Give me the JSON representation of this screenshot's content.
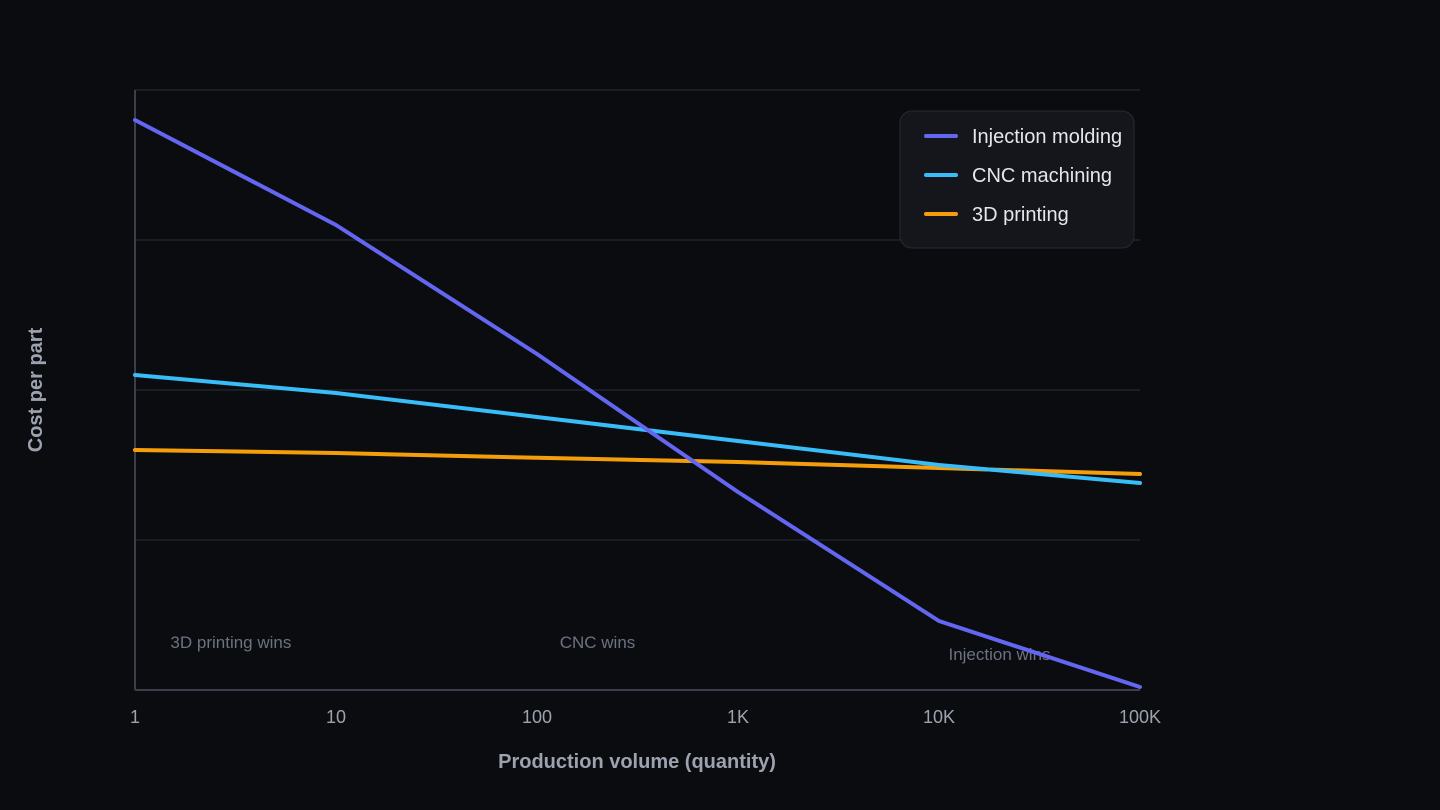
{
  "chart_data": {
    "type": "line",
    "title": "",
    "xlabel": "Production volume (quantity)",
    "ylabel": "Cost per part",
    "x_scale": "log",
    "x": [
      1,
      10,
      100,
      1000,
      10000,
      100000
    ],
    "x_tick_labels": [
      "1",
      "10",
      "100",
      "1K",
      "10K",
      "100K"
    ],
    "ylim": [
      0,
      100
    ],
    "y_ticks_labeled": false,
    "grid": "horizontal",
    "legend_position": "top-right",
    "series": [
      {
        "name": "Injection molding",
        "color": "#6366f1",
        "values": [
          95,
          77.5,
          56,
          33,
          11.5,
          0.5
        ]
      },
      {
        "name": "CNC machining",
        "color": "#38bdf8",
        "values": [
          52.5,
          49.5,
          45.5,
          41.5,
          37.5,
          34.5
        ]
      },
      {
        "name": "3D printing",
        "color": "#f59e0b",
        "values": [
          40,
          39.5,
          38.7,
          38,
          37,
          36
        ]
      }
    ],
    "annotations": [
      {
        "text": "3D printing wins",
        "x": 3,
        "y": 8
      },
      {
        "text": "CNC wins",
        "x": 200,
        "y": 8
      },
      {
        "text": "Injection wins",
        "x": 20000,
        "y": 6
      }
    ]
  }
}
